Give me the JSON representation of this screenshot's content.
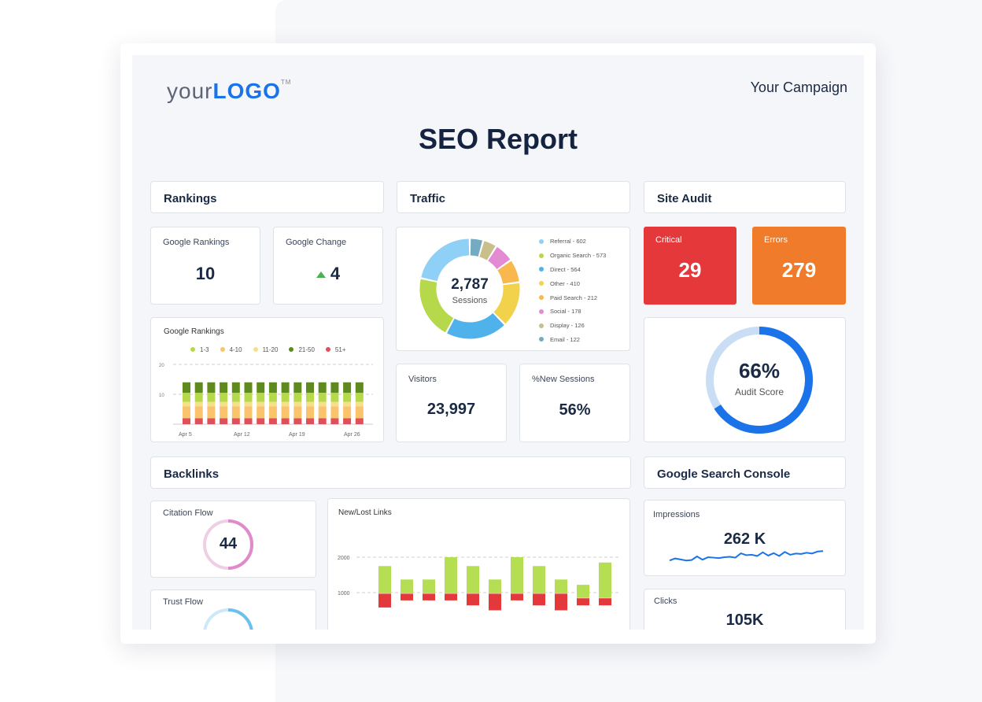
{
  "logo": {
    "your": "your",
    "logo": "LOGO",
    "tm": "TM"
  },
  "campaign": "Your Campaign",
  "title": "SEO Report",
  "sections": {
    "rankings": "Rankings",
    "traffic": "Traffic",
    "site_audit": "Site Audit",
    "backlinks": "Backlinks",
    "gsc": "Google Search Console"
  },
  "rankings": {
    "google_rankings_label": "Google Rankings",
    "google_rankings_value": "10",
    "google_change_label": "Google Change",
    "google_change_value": "4",
    "change_direction": "up"
  },
  "traffic": {
    "sessions_value": "2,787",
    "sessions_label": "Sessions",
    "visitors_label": "Visitors",
    "visitors_value": "23,997",
    "new_sessions_label": "%New Sessions",
    "new_sessions_value": "56%"
  },
  "site_audit": {
    "critical_label": "Critical",
    "critical_value": "29",
    "critical_color": "#e5383b",
    "errors_label": "Errors",
    "errors_value": "279",
    "errors_color": "#f07b2a",
    "score_value": "66%",
    "score_label": "Audit Score",
    "score_fraction": 0.66
  },
  "backlinks": {
    "citation_label": "Citation Flow",
    "citation_value": "44",
    "citation_fraction": 0.5,
    "trust_label": "Trust Flow",
    "trust_fraction": 0.5
  },
  "gsc": {
    "impressions_label": "Impressions",
    "impressions_value": "262 K",
    "clicks_label": "Clicks",
    "clicks_value": "105K"
  },
  "chart_data": [
    {
      "type": "pie",
      "title": "",
      "center_value": "2,787",
      "center_label": "Sessions",
      "slices": [
        {
          "label": "Referral - 602",
          "name": "Referral",
          "value": 602,
          "color": "#8fd0f7"
        },
        {
          "label": "Organic Search - 573",
          "name": "Organic Search",
          "value": 573,
          "color": "#b5d94b"
        },
        {
          "label": "Direct - 564",
          "name": "Direct",
          "value": 564,
          "color": "#4fb2ea"
        },
        {
          "label": "Other - 410",
          "name": "Other",
          "value": 410,
          "color": "#f2d24b"
        },
        {
          "label": "Paid Search - 212",
          "name": "Paid Search",
          "value": 212,
          "color": "#f8b84e"
        },
        {
          "label": "Social - 178",
          "name": "Social",
          "value": 178,
          "color": "#e38bd2"
        },
        {
          "label": "Display - 126",
          "name": "Display",
          "value": 126,
          "color": "#c9bf8a"
        },
        {
          "label": "Email - 122",
          "name": "Email",
          "value": 122,
          "color": "#74abc0"
        }
      ]
    },
    {
      "type": "bar",
      "title": "Google Rankings",
      "stacked": true,
      "ylim": [
        0,
        20
      ],
      "yticks": [
        "20",
        "10"
      ],
      "grid": true,
      "legend": "top",
      "x_ticks": [
        "Apr 5",
        "Apr 12",
        "Apr 19",
        "Apr 26"
      ],
      "categories": 15,
      "series": [
        {
          "name": "51+",
          "color": "#e0505a",
          "values": [
            2,
            2,
            2,
            2,
            2,
            2,
            2,
            2,
            2,
            2,
            2,
            2,
            2,
            2,
            2
          ]
        },
        {
          "name": "4-10",
          "color": "#f9c46b",
          "values": [
            4,
            4,
            4,
            4,
            4,
            4,
            4,
            4,
            4,
            4,
            4,
            4,
            4,
            4,
            4
          ]
        },
        {
          "name": "11-20",
          "color": "#f5e08a",
          "values": [
            1.5,
            1.5,
            1.5,
            1.5,
            1.5,
            1.5,
            1.5,
            1.5,
            1.5,
            1.5,
            1.5,
            1.5,
            1.5,
            1.5,
            1.5
          ]
        },
        {
          "name": "1-3",
          "color": "#b5d94b",
          "values": [
            3,
            3,
            3,
            3,
            3,
            3,
            3,
            3,
            3,
            3,
            3,
            3,
            3,
            3,
            3
          ]
        },
        {
          "name": "21-50",
          "color": "#5e8a1e",
          "values": [
            3.5,
            3.5,
            3.5,
            3.5,
            3.5,
            3.5,
            3.5,
            3.5,
            3.5,
            3.5,
            3.5,
            3.5,
            3.5,
            3.5,
            3.5
          ]
        }
      ],
      "legend_order": [
        "1-3",
        "4-10",
        "11-20",
        "21-50",
        "51+"
      ]
    },
    {
      "type": "bar",
      "title": "New/Lost Links",
      "yticks": [
        "2000",
        "1000"
      ],
      "ylim": [
        0,
        2600
      ],
      "grid": true,
      "new_color": "#b5de52",
      "lost_color": "#e5383b",
      "new": [
        [
          980,
          1750
        ],
        [
          980,
          1370
        ],
        [
          980,
          1370
        ],
        [
          980,
          2000
        ],
        [
          980,
          1750
        ],
        [
          980,
          1370
        ],
        [
          980,
          2000
        ],
        [
          980,
          1750
        ],
        [
          980,
          1370
        ],
        [
          850,
          1220
        ],
        [
          850,
          1850
        ]
      ],
      "lost": [
        [
          580,
          970
        ],
        [
          780,
          970
        ],
        [
          780,
          970
        ],
        [
          780,
          970
        ],
        [
          640,
          970
        ],
        [
          500,
          970
        ],
        [
          780,
          970
        ],
        [
          640,
          970
        ],
        [
          500,
          970
        ],
        [
          640,
          840
        ],
        [
          640,
          840
        ]
      ]
    },
    {
      "type": "line",
      "title": "Impressions",
      "color": "#1a73e8",
      "values": [
        3,
        4,
        3.5,
        3,
        3.2,
        5,
        3.4,
        4.6,
        4.4,
        4.2,
        4.6,
        4.8,
        4.4,
        6.5,
        5.6,
        5.8,
        5.2,
        7,
        5.4,
        6.6,
        5.2,
        7.2,
        5.8,
        6.4,
        6.2,
        6.8,
        6.4,
        7.4,
        7.6
      ]
    }
  ]
}
